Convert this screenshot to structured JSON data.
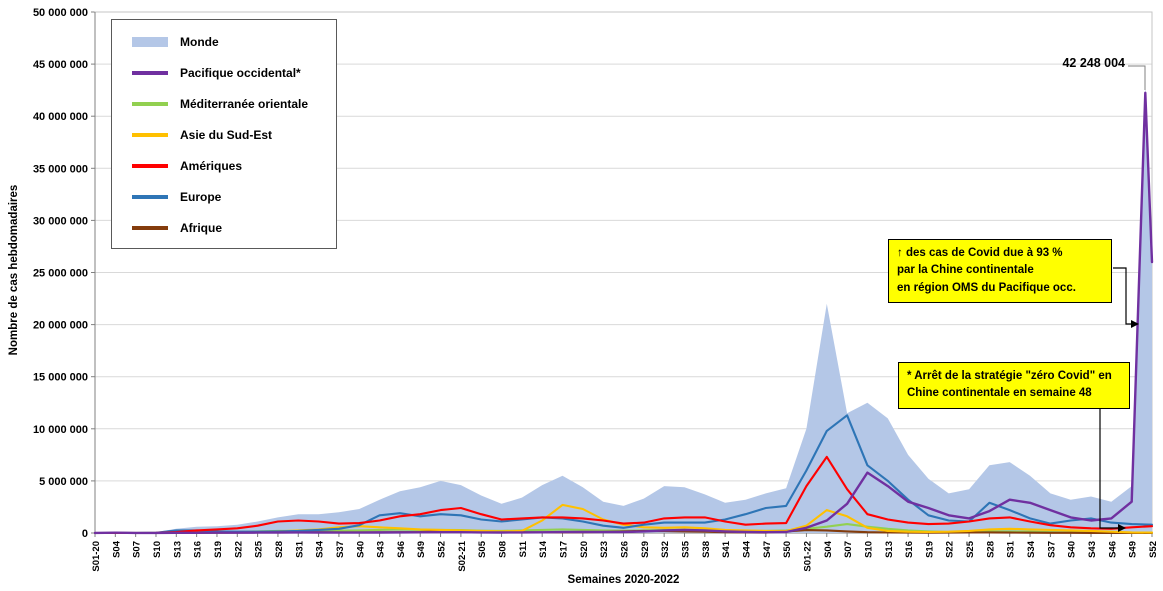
{
  "axes": {
    "x_title": "Semaines 2020-2022",
    "y_title": "Nombre de cas hebdomadaires"
  },
  "annotations": {
    "peak_label": "42 248 004",
    "callout1": "↑ des cas de Covid due à 93 %\npar la Chine continentale\nen région OMS du Pacifique occ.",
    "callout2": "* Arrêt de la stratégie \"zéro Covid\" en\nChine continentale en semaine 48"
  },
  "chart_data": {
    "type": "line",
    "title": "",
    "xlabel": "Semaines 2020-2022",
    "ylabel": "Nombre de cas hebdomadaires",
    "ylim": [
      0,
      50000000
    ],
    "y_step": 5000000,
    "grid": "horizontal",
    "legend_position": "top-left-inside",
    "categories": [
      "S01-20",
      "S04",
      "S07",
      "S10",
      "S13",
      "S16",
      "S19",
      "S22",
      "S25",
      "S28",
      "S31",
      "S34",
      "S37",
      "S40",
      "S43",
      "S46",
      "S49",
      "S52",
      "S02-21",
      "S05",
      "S08",
      "S11",
      "S14",
      "S17",
      "S20",
      "S23",
      "S26",
      "S29",
      "S32",
      "S35",
      "S38",
      "S41",
      "S44",
      "S47",
      "S50",
      "S01-22",
      "S04",
      "S07",
      "S10",
      "S13",
      "S16",
      "S19",
      "S22",
      "S25",
      "S28",
      "S31",
      "S34",
      "S37",
      "S40",
      "S43",
      "S46",
      "S49",
      "S52"
    ],
    "series": [
      {
        "id": "monde",
        "name": "Monde",
        "type": "area",
        "color": "#b4c7e7",
        "values": [
          10000,
          40000,
          40000,
          90000,
          400000,
          600000,
          650000,
          800000,
          1100000,
          1500000,
          1800000,
          1800000,
          2000000,
          2300000,
          3200000,
          4000000,
          4400000,
          5000000,
          4600000,
          3600000,
          2800000,
          3400000,
          4600000,
          5500000,
          4400000,
          3000000,
          2600000,
          3300000,
          4500000,
          4400000,
          3700000,
          2900000,
          3200000,
          3800000,
          4300000,
          10000000,
          22000000,
          11500000,
          12500000,
          11000000,
          7500000,
          5200000,
          3800000,
          4200000,
          6500000,
          6800000,
          5500000,
          3800000,
          3200000,
          3500000,
          3000000,
          4500000,
          27000000
        ],
        "extra_points": [
          [
            51.67,
            43000000
          ]
        ]
      },
      {
        "id": "pacifique-occidental",
        "name": "Pacifique occidental*",
        "type": "line",
        "color": "#7030a0",
        "values": [
          10000,
          30000,
          10000,
          10000,
          20000,
          20000,
          30000,
          30000,
          40000,
          50000,
          60000,
          50000,
          40000,
          40000,
          50000,
          60000,
          70000,
          80000,
          80000,
          60000,
          50000,
          60000,
          70000,
          90000,
          100000,
          100000,
          100000,
          150000,
          250000,
          300000,
          250000,
          150000,
          100000,
          80000,
          100000,
          500000,
          1200000,
          2800000,
          5800000,
          4500000,
          3000000,
          2400000,
          1700000,
          1400000,
          2100000,
          3200000,
          2900000,
          2200000,
          1500000,
          1200000,
          1400000,
          3000000,
          26000000
        ],
        "extra_points": [
          [
            51.67,
            42248004
          ]
        ]
      },
      {
        "id": "mediterranee-orientale",
        "name": "Méditerranée orientale",
        "type": "line",
        "color": "#92d050",
        "values": [
          0,
          5000,
          5000,
          10000,
          30000,
          60000,
          80000,
          100000,
          150000,
          200000,
          200000,
          180000,
          220000,
          250000,
          300000,
          350000,
          300000,
          300000,
          280000,
          220000,
          200000,
          250000,
          300000,
          350000,
          300000,
          250000,
          220000,
          250000,
          300000,
          300000,
          250000,
          200000,
          180000,
          200000,
          250000,
          400000,
          600000,
          850000,
          600000,
          400000,
          250000,
          150000,
          100000,
          100000,
          150000,
          150000,
          120000,
          80000,
          50000,
          40000,
          30000,
          30000,
          20000
        ]
      },
      {
        "id": "asie-du-sud-est",
        "name": "Asie du Sud-Est",
        "type": "line",
        "color": "#ffc000",
        "values": [
          0,
          2000,
          2000,
          5000,
          10000,
          20000,
          40000,
          60000,
          100000,
          150000,
          250000,
          350000,
          550000,
          650000,
          550000,
          450000,
          350000,
          300000,
          250000,
          200000,
          150000,
          200000,
          1200000,
          2700000,
          2300000,
          1300000,
          800000,
          550000,
          500000,
          550000,
          450000,
          300000,
          250000,
          200000,
          180000,
          700000,
          2200000,
          1600000,
          500000,
          200000,
          120000,
          100000,
          120000,
          200000,
          350000,
          400000,
          350000,
          300000,
          250000,
          200000,
          120000,
          60000,
          40000
        ]
      },
      {
        "id": "ameriques",
        "name": "Amériques",
        "type": "line",
        "color": "#ff0000",
        "values": [
          0,
          2000,
          3000,
          10000,
          100000,
          250000,
          350000,
          450000,
          700000,
          1100000,
          1200000,
          1100000,
          900000,
          950000,
          1200000,
          1600000,
          1800000,
          2200000,
          2400000,
          1800000,
          1300000,
          1400000,
          1500000,
          1500000,
          1400000,
          1200000,
          900000,
          1000000,
          1400000,
          1500000,
          1500000,
          1100000,
          800000,
          900000,
          950000,
          4500000,
          7300000,
          4200000,
          1800000,
          1300000,
          1000000,
          850000,
          900000,
          1100000,
          1400000,
          1500000,
          1100000,
          750000,
          550000,
          450000,
          400000,
          550000,
          650000
        ]
      },
      {
        "id": "europe",
        "name": "Europe",
        "type": "line",
        "color": "#2e75b6",
        "values": [
          0,
          1000,
          2000,
          20000,
          250000,
          250000,
          150000,
          120000,
          120000,
          150000,
          200000,
          300000,
          400000,
          750000,
          1700000,
          1900000,
          1600000,
          1800000,
          1700000,
          1300000,
          1100000,
          1300000,
          1500000,
          1400000,
          1100000,
          700000,
          500000,
          800000,
          1000000,
          1000000,
          1000000,
          1300000,
          1800000,
          2400000,
          2600000,
          6000000,
          9800000,
          11300000,
          6500000,
          5000000,
          3200000,
          1700000,
          1200000,
          1100000,
          2900000,
          2200000,
          1400000,
          900000,
          1200000,
          1400000,
          1000000,
          850000,
          800000
        ]
      },
      {
        "id": "afrique",
        "name": "Afrique",
        "type": "line",
        "color": "#843c0c",
        "values": [
          0,
          0,
          1000,
          2000,
          10000,
          20000,
          30000,
          40000,
          60000,
          90000,
          80000,
          70000,
          60000,
          60000,
          70000,
          80000,
          100000,
          180000,
          200000,
          120000,
          80000,
          70000,
          60000,
          60000,
          70000,
          100000,
          150000,
          200000,
          180000,
          150000,
          120000,
          80000,
          50000,
          40000,
          150000,
          280000,
          250000,
          150000,
          80000,
          50000,
          40000,
          30000,
          40000,
          50000,
          60000,
          40000,
          30000,
          20000,
          20000,
          10000,
          10000,
          10000,
          10000
        ]
      }
    ],
    "peak_annotation": {
      "label": "42 248 004",
      "value": 42248004,
      "week": "S51-22"
    }
  }
}
